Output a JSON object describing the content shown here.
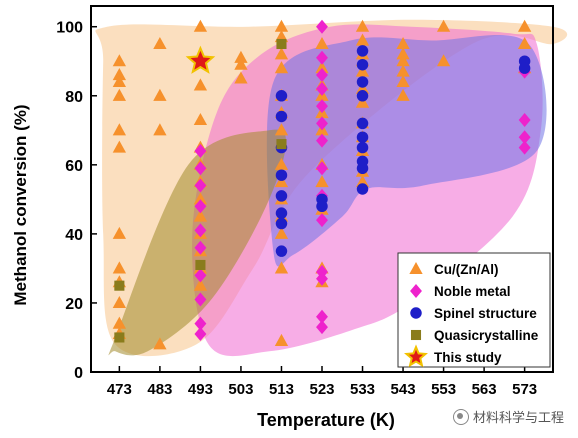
{
  "chart_data": {
    "type": "scatter",
    "xlabel": "Temperature (K)",
    "ylabel": "Methanol conversion (%)",
    "x_ticks": [
      473,
      483,
      493,
      503,
      513,
      523,
      533,
      543,
      553,
      563,
      573
    ],
    "y_ticks": [
      0,
      20,
      40,
      60,
      80,
      100
    ],
    "xlim": [
      466,
      580
    ],
    "ylim": [
      0,
      106
    ],
    "legend_position": "bottom-right",
    "grid": false,
    "regions": [
      {
        "series": "Cu/(Zn/Al)",
        "color": "#f7c58a",
        "polygon": [
          [
            470,
            100
          ],
          [
            505,
            100
          ],
          [
            545,
            102
          ],
          [
            580,
            100
          ],
          [
            580,
            95
          ],
          [
            560,
            95
          ],
          [
            520,
            58
          ],
          [
            506,
            30
          ],
          [
            492,
            8
          ],
          [
            472,
            8
          ],
          [
            469,
            40
          ],
          [
            469,
            90
          ]
        ]
      },
      {
        "series": "Noble metal",
        "color": "#f06ad2",
        "polygon": [
          [
            497,
            75
          ],
          [
            508,
            92
          ],
          [
            525,
            100
          ],
          [
            545,
            100
          ],
          [
            570,
            98
          ],
          [
            576,
            95
          ],
          [
            577,
            70
          ],
          [
            570,
            45
          ],
          [
            545,
            20
          ],
          [
            530,
            12
          ],
          [
            510,
            6
          ],
          [
            495,
            8
          ],
          [
            491,
            40
          ]
        ]
      },
      {
        "series": "Spinel structure",
        "color": "#6f72e6",
        "polygon": [
          [
            511,
            84
          ],
          [
            530,
            96
          ],
          [
            550,
            96
          ],
          [
            574,
            95
          ],
          [
            576,
            64
          ],
          [
            548,
            54
          ],
          [
            534,
            53
          ],
          [
            528,
            45
          ],
          [
            516,
            34
          ],
          [
            511,
            35
          ]
        ]
      },
      {
        "series": "Quasicrystalline",
        "color": "#a38a2c",
        "polygon": [
          [
            472,
            10
          ],
          [
            490,
            60
          ],
          [
            510,
            70
          ],
          [
            514,
            65
          ],
          [
            508,
            45
          ],
          [
            495,
            20
          ],
          [
            480,
            6
          ],
          [
            472,
            6
          ]
        ]
      }
    ],
    "series": [
      {
        "name": "Cu/(Zn/Al)",
        "marker": "triangle",
        "color": "#f6912c",
        "points": [
          [
            473,
            90
          ],
          [
            473,
            86
          ],
          [
            473,
            84
          ],
          [
            473,
            80
          ],
          [
            473,
            70
          ],
          [
            473,
            65
          ],
          [
            473,
            40
          ],
          [
            473,
            30
          ],
          [
            473,
            26
          ],
          [
            473,
            20
          ],
          [
            473,
            14
          ],
          [
            473,
            11
          ],
          [
            483,
            95
          ],
          [
            483,
            80
          ],
          [
            483,
            70
          ],
          [
            483,
            8
          ],
          [
            493,
            100
          ],
          [
            493,
            83
          ],
          [
            493,
            73
          ],
          [
            493,
            65
          ],
          [
            493,
            60
          ],
          [
            493,
            55
          ],
          [
            493,
            50
          ],
          [
            493,
            45
          ],
          [
            493,
            40
          ],
          [
            493,
            35
          ],
          [
            493,
            30
          ],
          [
            493,
            25
          ],
          [
            503,
            91
          ],
          [
            503,
            89
          ],
          [
            503,
            85
          ],
          [
            513,
            100
          ],
          [
            513,
            97
          ],
          [
            513,
            92
          ],
          [
            513,
            88
          ],
          [
            513,
            80
          ],
          [
            513,
            75
          ],
          [
            513,
            70
          ],
          [
            513,
            60
          ],
          [
            513,
            55
          ],
          [
            513,
            50
          ],
          [
            513,
            45
          ],
          [
            513,
            40
          ],
          [
            513,
            30
          ],
          [
            513,
            9
          ],
          [
            523,
            95
          ],
          [
            523,
            88
          ],
          [
            523,
            83
          ],
          [
            523,
            80
          ],
          [
            523,
            75
          ],
          [
            523,
            70
          ],
          [
            523,
            60
          ],
          [
            523,
            55
          ],
          [
            523,
            47
          ],
          [
            523,
            30
          ],
          [
            523,
            26
          ],
          [
            533,
            100
          ],
          [
            533,
            96
          ],
          [
            533,
            92
          ],
          [
            533,
            90
          ],
          [
            533,
            87
          ],
          [
            533,
            82
          ],
          [
            533,
            78
          ],
          [
            533,
            72
          ],
          [
            533,
            68
          ],
          [
            533,
            64
          ],
          [
            533,
            58
          ],
          [
            533,
            55
          ],
          [
            543,
            95
          ],
          [
            543,
            92
          ],
          [
            543,
            90
          ],
          [
            543,
            87
          ],
          [
            543,
            84
          ],
          [
            543,
            80
          ],
          [
            553,
            100
          ],
          [
            553,
            90
          ],
          [
            573,
            100
          ],
          [
            573,
            95
          ],
          [
            573,
            88
          ]
        ]
      },
      {
        "name": "Noble metal",
        "marker": "diamond",
        "color": "#ee22cc",
        "points": [
          [
            493,
            64
          ],
          [
            493,
            59
          ],
          [
            493,
            54
          ],
          [
            493,
            48
          ],
          [
            493,
            41
          ],
          [
            493,
            36
          ],
          [
            493,
            28
          ],
          [
            493,
            21
          ],
          [
            493,
            14
          ],
          [
            493,
            11
          ],
          [
            523,
            100
          ],
          [
            523,
            91
          ],
          [
            523,
            86
          ],
          [
            523,
            82
          ],
          [
            523,
            77
          ],
          [
            523,
            72
          ],
          [
            523,
            67
          ],
          [
            523,
            59
          ],
          [
            523,
            51
          ],
          [
            523,
            44
          ],
          [
            523,
            29
          ],
          [
            523,
            27
          ],
          [
            523,
            16
          ],
          [
            523,
            13
          ],
          [
            573,
            87
          ],
          [
            573,
            73
          ],
          [
            573,
            68
          ],
          [
            573,
            65
          ]
        ]
      },
      {
        "name": "Spinel structure",
        "marker": "circle",
        "color": "#1e1ec8",
        "points": [
          [
            513,
            80
          ],
          [
            513,
            74
          ],
          [
            513,
            65
          ],
          [
            513,
            57
          ],
          [
            513,
            51
          ],
          [
            513,
            46
          ],
          [
            513,
            43
          ],
          [
            513,
            35
          ],
          [
            523,
            50
          ],
          [
            523,
            48
          ],
          [
            533,
            93
          ],
          [
            533,
            89
          ],
          [
            533,
            84
          ],
          [
            533,
            80
          ],
          [
            533,
            72
          ],
          [
            533,
            68
          ],
          [
            533,
            65
          ],
          [
            533,
            61
          ],
          [
            533,
            59
          ],
          [
            533,
            53
          ],
          [
            573,
            90
          ],
          [
            573,
            88
          ]
        ]
      },
      {
        "name": "Quasicrystalline",
        "marker": "square",
        "color": "#8a7c1c",
        "points": [
          [
            473,
            25
          ],
          [
            473,
            10
          ],
          [
            493,
            31
          ],
          [
            513,
            95
          ],
          [
            513,
            66
          ]
        ]
      },
      {
        "name": "This study",
        "marker": "star",
        "color": "#e01818",
        "edge": "#f2c200",
        "points": [
          [
            493,
            90
          ]
        ]
      }
    ]
  },
  "watermark": {
    "text": "材料科学与工程",
    "icon": "wechat-icon"
  }
}
